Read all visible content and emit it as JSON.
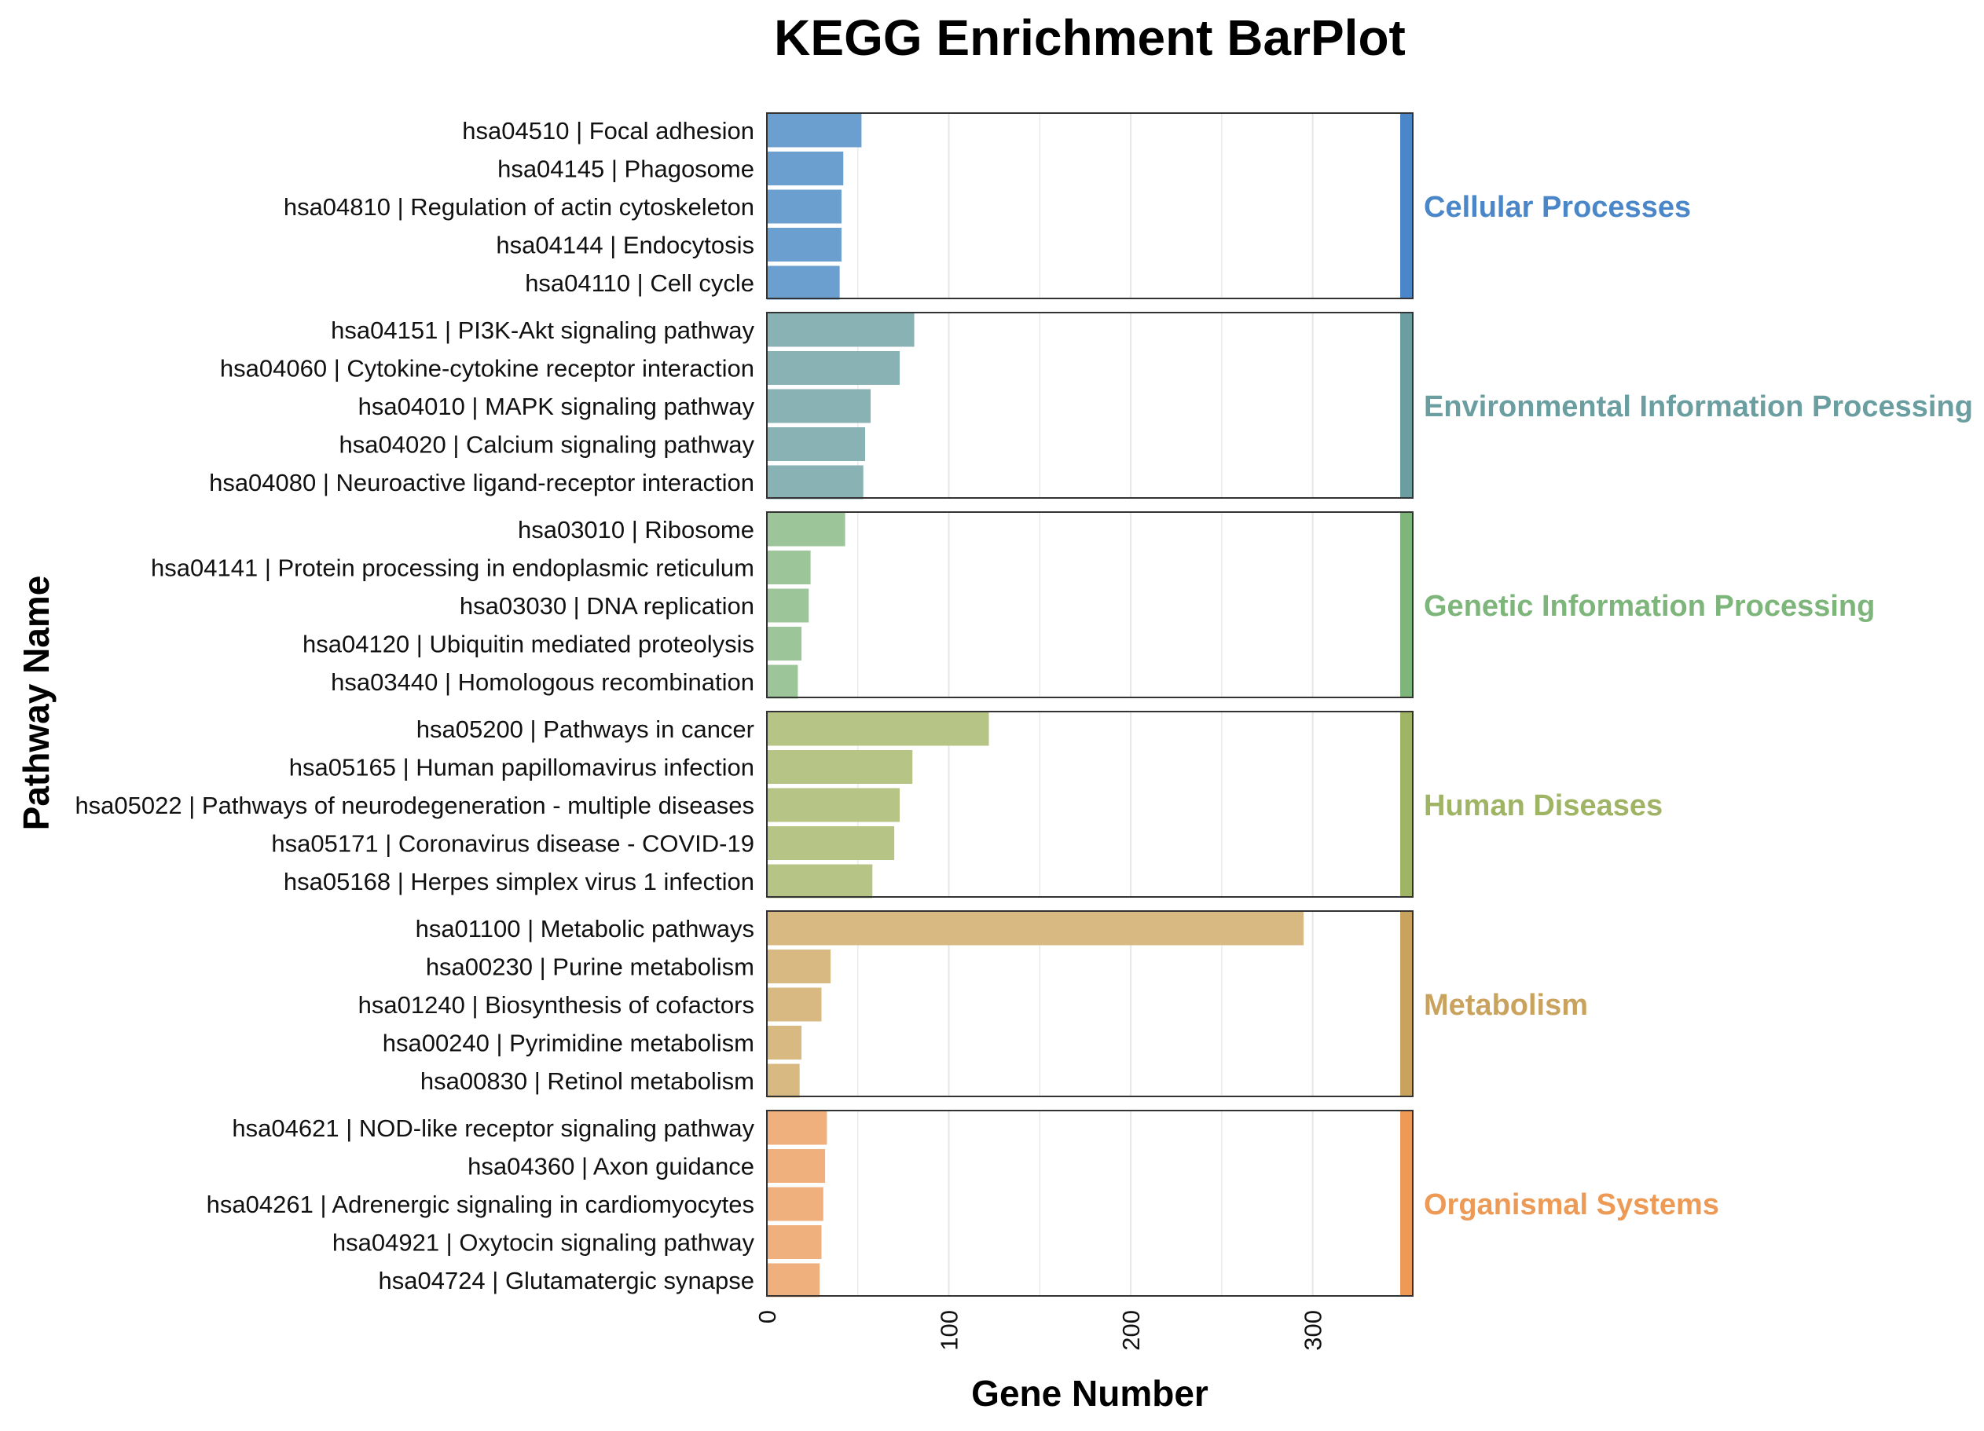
{
  "chart_data": {
    "type": "bar",
    "orientation": "horizontal",
    "title": "KEGG Enrichment BarPlot",
    "xlabel": "Gene Number",
    "ylabel": "Pathway Name",
    "xlim": [
      0,
      355
    ],
    "x_ticks": [
      {
        "value": 0,
        "label": "0"
      },
      {
        "value": 100,
        "label": "100"
      },
      {
        "value": 200,
        "label": "200"
      },
      {
        "value": 300,
        "label": "300"
      }
    ],
    "grid": "vertical",
    "legend": "facet strip labels on the right",
    "groups": [
      {
        "name": "Cellular Processes",
        "color": "#6a9fd0",
        "strip_color": "#4a86c8",
        "label_color": "#4a86c8",
        "categories": [
          "hsa04510 | Focal adhesion",
          "hsa04145 | Phagosome",
          "hsa04810 | Regulation of actin cytoskeleton",
          "hsa04144 | Endocytosis",
          "hsa04110 | Cell cycle"
        ],
        "values": [
          52,
          42,
          41,
          41,
          40
        ]
      },
      {
        "name": "Environmental Information Processing",
        "color": "#88b2b3",
        "strip_color": "#6a9ea0",
        "label_color": "#6a9ea0",
        "categories": [
          "hsa04151 | PI3K-Akt signaling pathway",
          "hsa04060 | Cytokine-cytokine receptor interaction",
          "hsa04010 | MAPK signaling pathway",
          "hsa04020 | Calcium signaling pathway",
          "hsa04080 | Neuroactive ligand-receptor interaction"
        ],
        "values": [
          81,
          73,
          57,
          54,
          53
        ]
      },
      {
        "name": "Genetic Information Processing",
        "color": "#9cc59a",
        "strip_color": "#7db57b",
        "label_color": "#7db57b",
        "categories": [
          "hsa03010 | Ribosome",
          "hsa04141 | Protein processing in endoplasmic reticulum",
          "hsa03030 | DNA replication",
          "hsa04120 | Ubiquitin mediated proteolysis",
          "hsa03440 | Homologous recombination"
        ],
        "values": [
          43,
          24,
          23,
          19,
          17
        ]
      },
      {
        "name": "Human Diseases",
        "color": "#b6c485",
        "strip_color": "#a0b466",
        "label_color": "#a0b466",
        "categories": [
          "hsa05200 | Pathways in cancer",
          "hsa05165 | Human papillomavirus infection",
          "hsa05022 | Pathways of neurodegeneration - multiple diseases",
          "hsa05171 | Coronavirus disease - COVID-19",
          "hsa05168 | Herpes simplex virus 1 infection"
        ],
        "values": [
          122,
          80,
          73,
          70,
          58
        ]
      },
      {
        "name": "Metabolism",
        "color": "#d8b982",
        "strip_color": "#c9a35e",
        "label_color": "#c9a35e",
        "categories": [
          "hsa01100 | Metabolic pathways",
          "hsa00230 | Purine metabolism",
          "hsa01240 | Biosynthesis of cofactors",
          "hsa00240 | Pyrimidine metabolism",
          "hsa00830 | Retinol metabolism"
        ],
        "values": [
          295,
          35,
          30,
          19,
          18
        ]
      },
      {
        "name": "Organismal Systems",
        "color": "#f0b07e",
        "strip_color": "#ec9a56",
        "label_color": "#ec9a56",
        "categories": [
          "hsa04621 | NOD-like receptor signaling pathway",
          "hsa04360 | Axon guidance",
          "hsa04261 | Adrenergic signaling in cardiomyocytes",
          "hsa04921 | Oxytocin signaling pathway",
          "hsa04724 | Glutamatergic synapse"
        ],
        "values": [
          33,
          32,
          31,
          30,
          29
        ]
      }
    ]
  }
}
